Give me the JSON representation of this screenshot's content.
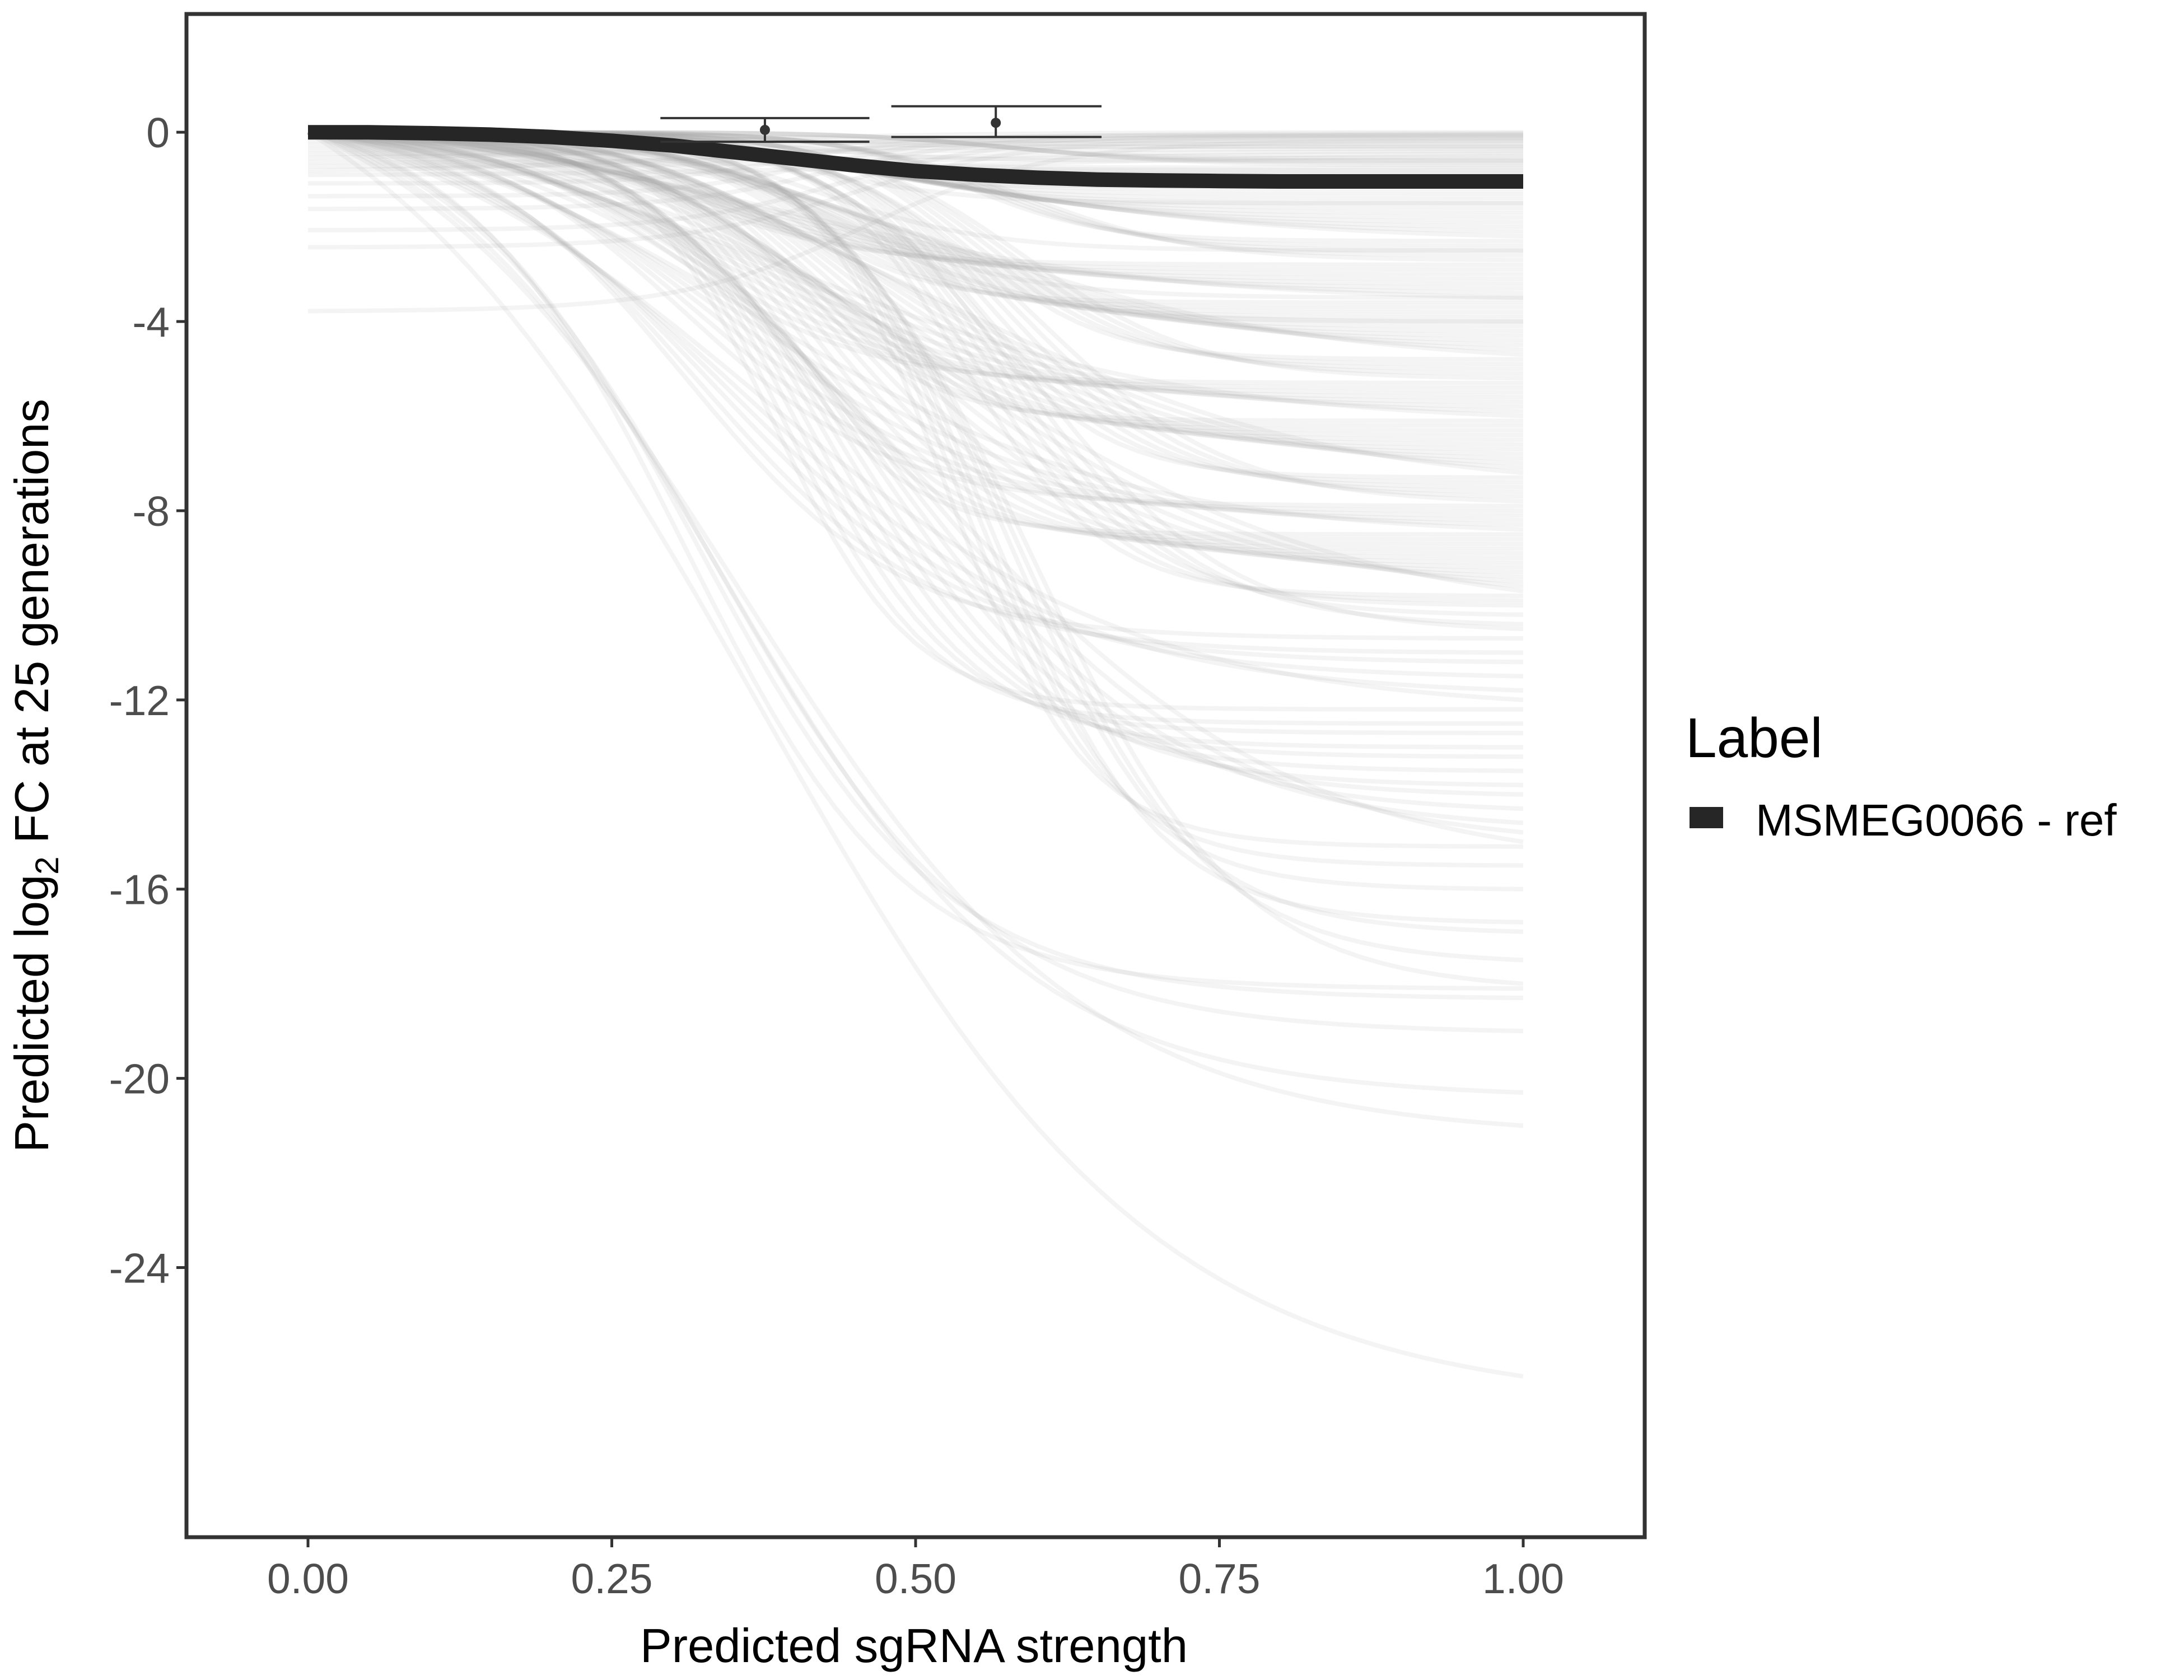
{
  "chart_data": {
    "type": "line",
    "xlabel": "Predicted sgRNA strength",
    "ylabel_parts": [
      "Predicted  log",
      "2",
      " FC at 25 generations"
    ],
    "xlim": [
      -0.1,
      1.1
    ],
    "ylim": [
      -29.7,
      2.5
    ],
    "x_ticks": [
      0.0,
      0.25,
      0.5,
      0.75,
      1.0
    ],
    "x_tick_labels": [
      "0.00",
      "0.25",
      "0.50",
      "0.75",
      "1.00"
    ],
    "y_ticks": [
      0,
      -4,
      -8,
      -12,
      -16,
      -20,
      -24
    ],
    "y_tick_labels": [
      "0",
      "-4",
      "-8",
      "-12",
      "-16",
      "-20",
      "-24"
    ],
    "grid": false,
    "legend": {
      "title": "Label",
      "position": "right",
      "entries": [
        {
          "label": "MSMEG0066 - ref",
          "color": "#262626"
        }
      ]
    },
    "highlight_series": {
      "name": "MSMEG0066 - ref",
      "color": "#262626",
      "x": [
        0.0,
        0.05,
        0.1,
        0.15,
        0.2,
        0.25,
        0.3,
        0.35,
        0.4,
        0.45,
        0.5,
        0.55,
        0.6,
        0.65,
        0.7,
        0.75,
        0.8,
        0.85,
        0.9,
        0.95,
        1.0
      ],
      "y": [
        0.0,
        0.0,
        -0.02,
        -0.05,
        -0.1,
        -0.18,
        -0.28,
        -0.42,
        -0.56,
        -0.7,
        -0.82,
        -0.9,
        -0.96,
        -1.0,
        -1.02,
        -1.03,
        -1.04,
        -1.04,
        -1.04,
        -1.04,
        -1.04
      ]
    },
    "error_bars": [
      {
        "x": 0.376,
        "y": 0.05,
        "ymin": -0.2,
        "ymax": 0.3,
        "xmin": 0.29,
        "xmax": 0.462
      },
      {
        "x": 0.566,
        "y": 0.2,
        "ymin": -0.1,
        "ymax": 0.55,
        "xmin": 0.48,
        "xmax": 0.653
      }
    ],
    "background_series": {
      "color": "#a6a6a6",
      "opacity": 0.12,
      "x_range": [
        0.0,
        1.0
      ],
      "model": "y = y0 + (asymptote - y0) * logistic(k * (x - x50)), normalized to 0 at x = 0",
      "count": 158,
      "asymptote": [
        0.0,
        -0.02,
        -0.04,
        -0.06,
        -0.08,
        -0.1,
        -0.12,
        -0.15,
        -0.18,
        -0.2,
        -0.25,
        -0.3,
        -0.35,
        -0.4,
        -0.45,
        -0.5,
        -0.55,
        -0.6,
        -0.65,
        -0.7,
        -0.75,
        -0.8,
        -0.85,
        -0.9,
        -0.95,
        -1.0,
        -1.05,
        -1.1,
        -1.15,
        -1.2,
        -1.3,
        -1.4,
        -1.5,
        -1.6,
        -1.7,
        -1.8,
        -1.9,
        -2.0,
        -2.1,
        -2.2,
        -2.3,
        -2.4,
        -2.5,
        -2.6,
        -2.7,
        -2.8,
        -2.9,
        -3.0,
        -3.1,
        -3.2,
        -3.3,
        -3.4,
        -3.5,
        -3.6,
        -3.7,
        -3.8,
        -3.9,
        -4.0,
        -4.1,
        -4.2,
        -4.3,
        -4.4,
        -4.5,
        -4.6,
        -4.7,
        -4.8,
        -4.9,
        -5.0,
        -5.1,
        -5.2,
        -5.3,
        -5.4,
        -5.5,
        -5.6,
        -5.7,
        -5.8,
        -5.9,
        -6.0,
        -6.1,
        -6.2,
        -6.3,
        -6.4,
        -6.5,
        -6.6,
        -6.7,
        -6.8,
        -6.9,
        -7.0,
        -7.1,
        -7.2,
        -7.3,
        -7.4,
        -7.5,
        -7.6,
        -7.7,
        -7.8,
        -7.9,
        -8.0,
        -8.1,
        -8.2,
        -8.3,
        -8.4,
        -8.5,
        -8.6,
        -8.7,
        -8.8,
        -8.9,
        -9.0,
        -9.1,
        -9.2,
        -9.3,
        -9.4,
        -9.5,
        -9.6,
        -9.7,
        -9.8,
        -9.9,
        -10.0,
        -10.2,
        -10.4,
        -10.5,
        -10.7,
        -11.0,
        -11.2,
        -11.5,
        -11.8,
        -12.0,
        -12.2,
        -12.5,
        -12.7,
        -13.0,
        -13.2,
        -13.5,
        -13.8,
        -14.0,
        -14.3,
        -14.6,
        -14.8,
        -15.0,
        -15.1,
        -15.5,
        -16.0,
        -16.7,
        -16.9,
        -17.5,
        -18.0,
        -18.1,
        -18.3,
        -19.0,
        -20.3,
        -21.0,
        -26.3,
        -0.3,
        -0.6,
        -1.5,
        -2.5,
        -3.5,
        -4.0
      ],
      "start_offset": [
        -0.3,
        -0.6,
        -0.9,
        -1.2,
        -1.5,
        -1.8,
        -2.3,
        -2.7,
        -4.2,
        -0.1,
        -0.2,
        -0.4,
        -0.5,
        -0.7,
        -0.8,
        -1.0
      ]
    }
  }
}
